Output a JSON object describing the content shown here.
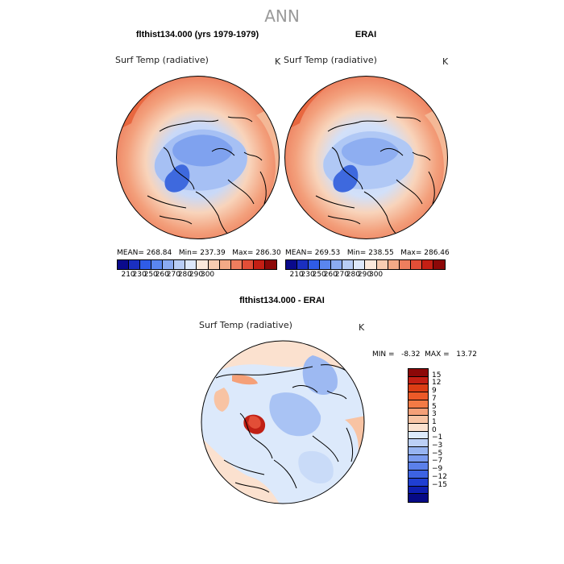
{
  "title": "ANN",
  "panel1": {
    "title": "flthist134.000 (yrs 1979-1979)",
    "variable": "Surf Temp (radiative)",
    "unit": "K",
    "stats": "MEAN= 268.84   Min= 237.39   Max= 286.30"
  },
  "panel2": {
    "title": "ERAI",
    "variable": "Surf Temp (radiative)",
    "unit": "K",
    "stats": "MEAN= 269.53   Min= 238.55   Max= 286.46"
  },
  "panel3": {
    "title": "flthist134.000 - ERAI",
    "variable": "Surf Temp (radiative)",
    "unit": "K",
    "stats": "MIN =   -8.32  MAX =   13.72"
  },
  "colorbar_top": {
    "colors": [
      "#0a0a8c",
      "#1a2fc0",
      "#2f5ce6",
      "#5a86ef",
      "#8aaaf2",
      "#b8cdf6",
      "#dde8fb",
      "#fbe9dc",
      "#f8cdb2",
      "#f4a986",
      "#ee7e5e",
      "#e24e37",
      "#c41f14",
      "#8c0808"
    ],
    "ticks": [
      "210",
      "230",
      "250",
      "260",
      "270",
      "280",
      "290",
      "300"
    ]
  },
  "colorbar_diff": {
    "colors": [
      "#8c0808",
      "#c41f14",
      "#dc3d14",
      "#ec5a28",
      "#f27a45",
      "#f5a078",
      "#f8c3a3",
      "#fbe1cf",
      "#ddeafb",
      "#bcd0f6",
      "#97b4f1",
      "#7a9bef",
      "#5b80ea",
      "#3d63e2",
      "#1f3fd2",
      "#0e1fb0",
      "#060a86"
    ],
    "ticks": [
      "15",
      "12",
      "9",
      "7",
      "5",
      "3",
      "1",
      "0",
      "−1",
      "−3",
      "−5",
      "−7",
      "−9",
      "−12",
      "−15"
    ]
  }
}
